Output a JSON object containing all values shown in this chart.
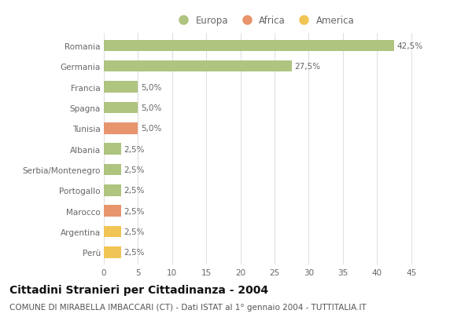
{
  "countries": [
    "Romania",
    "Germania",
    "Francia",
    "Spagna",
    "Tunisia",
    "Albania",
    "Serbia/Montenegro",
    "Portogallo",
    "Marocco",
    "Argentina",
    "Perù"
  ],
  "values": [
    42.5,
    27.5,
    5.0,
    5.0,
    5.0,
    2.5,
    2.5,
    2.5,
    2.5,
    2.5,
    2.5
  ],
  "categories": [
    "Europa",
    "Africa",
    "America"
  ],
  "continent": [
    "Europa",
    "Europa",
    "Europa",
    "Europa",
    "Africa",
    "Europa",
    "Europa",
    "Europa",
    "Africa",
    "America",
    "America"
  ],
  "bar_colors": {
    "Europa": "#aec47f",
    "Africa": "#e8956d",
    "America": "#f0c555"
  },
  "labels": [
    "42,5%",
    "27,5%",
    "5,0%",
    "5,0%",
    "5,0%",
    "2,5%",
    "2,5%",
    "2,5%",
    "2,5%",
    "2,5%",
    "2,5%"
  ],
  "xlim": [
    0,
    47
  ],
  "xticks": [
    0,
    5,
    10,
    15,
    20,
    25,
    30,
    35,
    40,
    45
  ],
  "title": "Cittadini Stranieri per Cittadinanza - 2004",
  "subtitle": "COMUNE DI MIRABELLA IMBACCARI (CT) - Dati ISTAT al 1° gennaio 2004 - TUTTITALIA.IT",
  "background_color": "#ffffff",
  "grid_color": "#e0e0e0",
  "bar_height": 0.55,
  "title_fontsize": 10,
  "subtitle_fontsize": 7.5,
  "label_fontsize": 7.5,
  "tick_fontsize": 7.5,
  "legend_fontsize": 8.5
}
